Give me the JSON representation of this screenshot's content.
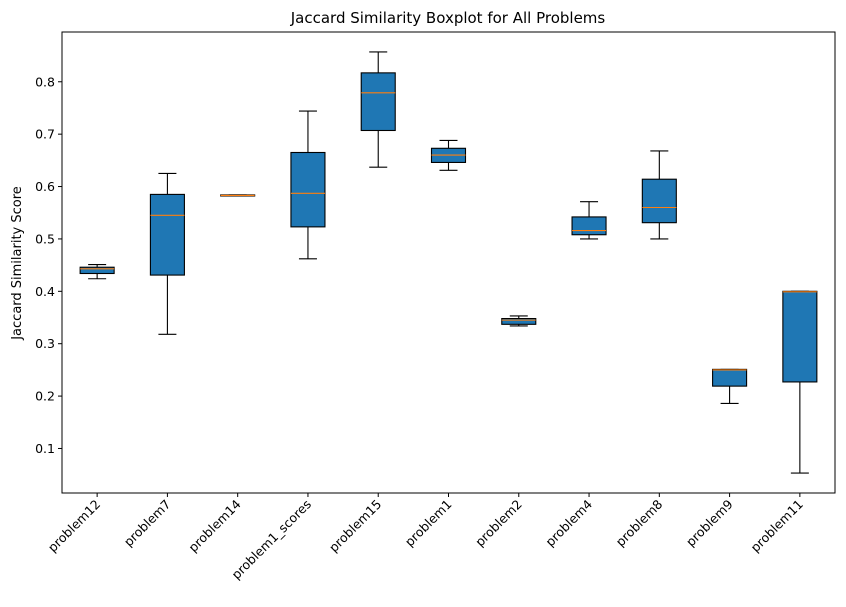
{
  "chart_data": {
    "type": "boxplot",
    "title": "Jaccard Similarity Boxplot for All Problems",
    "xlabel": "",
    "ylabel": "Jaccard Similarity Score",
    "ylim": [
      0.015,
      0.895
    ],
    "yticks": [
      0.1,
      0.2,
      0.3,
      0.4,
      0.5,
      0.6,
      0.7,
      0.8
    ],
    "grid": false,
    "box_color": "#1f77b4",
    "median_color": "#ff7f0e",
    "categories": [
      "problem12",
      "problem7",
      "problem14",
      "problem1_scores",
      "problem15",
      "problem1",
      "problem2",
      "problem4",
      "problem8",
      "problem9",
      "problem11"
    ],
    "boxes": [
      {
        "whisker_low": 0.424,
        "q1": 0.434,
        "median": 0.443,
        "q3": 0.446,
        "whisker_high": 0.451
      },
      {
        "whisker_low": 0.318,
        "q1": 0.431,
        "median": 0.545,
        "q3": 0.585,
        "whisker_high": 0.625
      },
      {
        "whisker_low": 0.582,
        "q1": 0.582,
        "median": 0.583,
        "q3": 0.584,
        "whisker_high": 0.584
      },
      {
        "whisker_low": 0.462,
        "q1": 0.523,
        "median": 0.587,
        "q3": 0.665,
        "whisker_high": 0.744
      },
      {
        "whisker_low": 0.637,
        "q1": 0.707,
        "median": 0.779,
        "q3": 0.817,
        "whisker_high": 0.857
      },
      {
        "whisker_low": 0.631,
        "q1": 0.646,
        "median": 0.66,
        "q3": 0.673,
        "whisker_high": 0.688
      },
      {
        "whisker_low": 0.334,
        "q1": 0.337,
        "median": 0.345,
        "q3": 0.348,
        "whisker_high": 0.353
      },
      {
        "whisker_low": 0.5,
        "q1": 0.508,
        "median": 0.516,
        "q3": 0.542,
        "whisker_high": 0.571
      },
      {
        "whisker_low": 0.5,
        "q1": 0.531,
        "median": 0.56,
        "q3": 0.614,
        "whisker_high": 0.668
      },
      {
        "whisker_low": 0.186,
        "q1": 0.219,
        "median": 0.25,
        "q3": 0.251,
        "whisker_high": 0.251
      },
      {
        "whisker_low": 0.053,
        "q1": 0.227,
        "median": 0.399,
        "q3": 0.4,
        "whisker_high": 0.4
      }
    ]
  }
}
